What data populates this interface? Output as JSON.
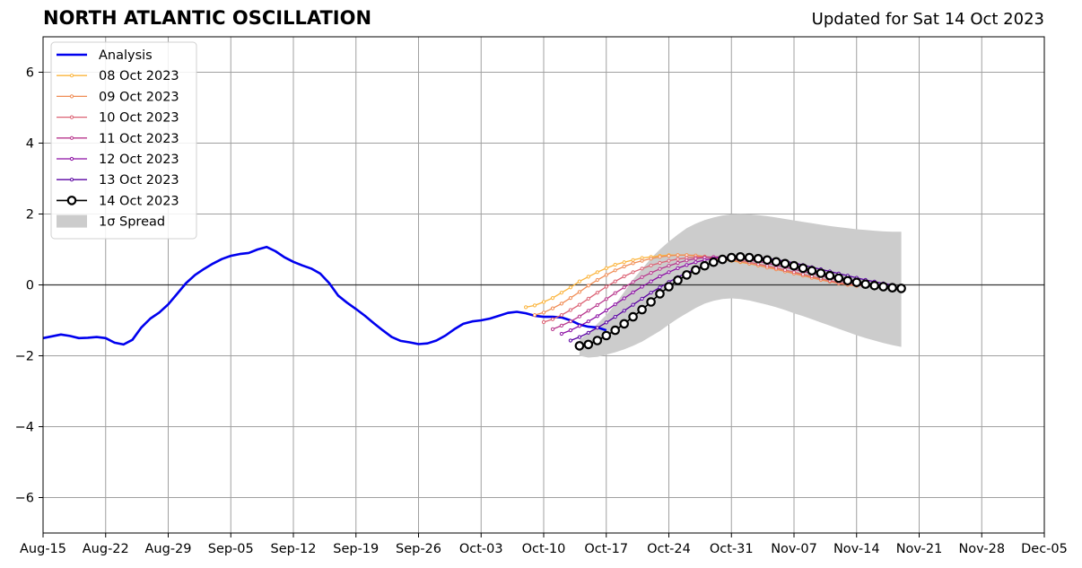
{
  "chart_data": {
    "type": "line",
    "title": "NORTH ATLANTIC OSCILLATION",
    "subtitle": "Updated for Sat 14 Oct 2023",
    "xlabel": "",
    "ylabel": "",
    "ylim": [
      -7,
      7
    ],
    "xlim": [
      "2023-08-15",
      "2023-12-05"
    ],
    "grid": true,
    "legend_position": "top-left",
    "x_tick_labels": [
      "Aug-15",
      "Aug-22",
      "Aug-29",
      "Sep-05",
      "Sep-12",
      "Sep-19",
      "Sep-26",
      "Oct-03",
      "Oct-10",
      "Oct-17",
      "Oct-24",
      "Oct-31",
      "Nov-07",
      "Nov-14",
      "Nov-21",
      "Nov-28",
      "Dec-05"
    ],
    "y_ticks": [
      6,
      4,
      2,
      0,
      -2,
      -4,
      -6
    ],
    "y_tick_labels": [
      "6",
      "4",
      "2",
      "0",
      "−2",
      "−4",
      "−6"
    ],
    "legend": [
      {
        "label": "Analysis",
        "color": "#0000ee",
        "kind": "line"
      },
      {
        "label": "08 Oct 2023",
        "color": "#fbb43c",
        "kind": "small"
      },
      {
        "label": "09 Oct 2023",
        "color": "#f08c54",
        "kind": "small"
      },
      {
        "label": "10 Oct 2023",
        "color": "#dc6274",
        "kind": "small"
      },
      {
        "label": "11 Oct 2023",
        "color": "#b8378d",
        "kind": "small"
      },
      {
        "label": "12 Oct 2023",
        "color": "#8c0fa4",
        "kind": "small"
      },
      {
        "label": "13 Oct 2023",
        "color": "#5a02a2",
        "kind": "small"
      },
      {
        "label": "14 Oct 2023",
        "color": "#000000",
        "kind": "big"
      },
      {
        "label": "1σ Spread",
        "color": "#cccccc",
        "kind": "patch"
      }
    ],
    "analysis": {
      "start": "2023-08-15",
      "values": [
        -1.5,
        -1.45,
        -1.4,
        -1.44,
        -1.5,
        -1.49,
        -1.47,
        -1.5,
        -1.63,
        -1.68,
        -1.55,
        -1.2,
        -0.95,
        -0.78,
        -0.55,
        -0.25,
        0.05,
        0.28,
        0.45,
        0.6,
        0.73,
        0.82,
        0.87,
        0.9,
        1.0,
        1.07,
        0.95,
        0.78,
        0.65,
        0.55,
        0.46,
        0.32,
        0.05,
        -0.3,
        -0.5,
        -0.68,
        -0.87,
        -1.08,
        -1.28,
        -1.47,
        -1.58,
        -1.62,
        -1.67,
        -1.65,
        -1.57,
        -1.43,
        -1.25,
        -1.1,
        -1.03,
        -1.0,
        -0.95,
        -0.87,
        -0.79,
        -0.76,
        -0.8,
        -0.87,
        -0.9,
        -0.9,
        -0.92,
        -1.0,
        -1.12,
        -1.18,
        -1.2,
        -1.28
      ]
    },
    "forecasts": [
      {
        "name": "08 Oct 2023",
        "start": "2023-10-08",
        "color": "#fbb43c",
        "values": [
          -0.63,
          -0.58,
          -0.48,
          -0.37,
          -0.22,
          -0.07,
          0.1,
          0.23,
          0.36,
          0.47,
          0.57,
          0.64,
          0.7,
          0.76,
          0.79,
          0.82,
          0.84,
          0.84,
          0.84,
          0.82,
          0.79,
          0.75,
          0.72,
          0.68,
          0.64,
          0.6,
          0.55,
          0.5,
          0.45,
          0.39,
          0.33,
          0.28,
          0.22,
          0.17,
          0.12,
          0.06,
          0.01
        ]
      },
      {
        "name": "09 Oct 2023",
        "start": "2023-10-09",
        "color": "#f08c54",
        "values": [
          -0.85,
          -0.78,
          -0.66,
          -0.53,
          -0.37,
          -0.2,
          -0.02,
          0.14,
          0.28,
          0.41,
          0.52,
          0.61,
          0.68,
          0.74,
          0.79,
          0.82,
          0.84,
          0.84,
          0.83,
          0.8,
          0.77,
          0.73,
          0.69,
          0.65,
          0.6,
          0.55,
          0.49,
          0.44,
          0.38,
          0.32,
          0.26,
          0.2,
          0.14,
          0.09,
          0.04,
          0.0,
          -0.03
        ]
      },
      {
        "name": "10 Oct 2023",
        "start": "2023-10-10",
        "color": "#dc6274",
        "values": [
          -1.05,
          -0.97,
          -0.85,
          -0.71,
          -0.56,
          -0.39,
          -0.22,
          -0.05,
          0.1,
          0.24,
          0.36,
          0.46,
          0.55,
          0.62,
          0.68,
          0.73,
          0.76,
          0.78,
          0.79,
          0.78,
          0.76,
          0.73,
          0.69,
          0.64,
          0.59,
          0.54,
          0.48,
          0.42,
          0.36,
          0.3,
          0.24,
          0.18,
          0.12,
          0.07,
          0.03,
          -0.01,
          -0.04
        ]
      },
      {
        "name": "11 Oct 2023",
        "start": "2023-10-11",
        "color": "#b8378d",
        "values": [
          -1.25,
          -1.15,
          -1.03,
          -0.89,
          -0.73,
          -0.57,
          -0.4,
          -0.23,
          -0.07,
          0.08,
          0.22,
          0.34,
          0.45,
          0.54,
          0.62,
          0.69,
          0.74,
          0.77,
          0.79,
          0.79,
          0.77,
          0.74,
          0.7,
          0.66,
          0.61,
          0.55,
          0.5,
          0.44,
          0.38,
          0.32,
          0.26,
          0.2,
          0.14,
          0.09,
          0.04,
          0.0,
          -0.04
        ]
      },
      {
        "name": "12 Oct 2023",
        "start": "2023-10-12",
        "color": "#8c0fa4",
        "values": [
          -1.38,
          -1.28,
          -1.16,
          -1.03,
          -0.88,
          -0.72,
          -0.55,
          -0.38,
          -0.21,
          -0.05,
          0.1,
          0.24,
          0.36,
          0.47,
          0.56,
          0.64,
          0.7,
          0.75,
          0.78,
          0.79,
          0.78,
          0.76,
          0.72,
          0.68,
          0.63,
          0.57,
          0.51,
          0.45,
          0.39,
          0.33,
          0.27,
          0.21,
          0.15,
          0.1,
          0.05,
          0.0,
          -0.04
        ]
      },
      {
        "name": "13 Oct 2023",
        "start": "2023-10-13",
        "color": "#5a02a2",
        "values": [
          -1.57,
          -1.47,
          -1.35,
          -1.21,
          -1.06,
          -0.9,
          -0.73,
          -0.56,
          -0.39,
          -0.22,
          -0.07,
          0.08,
          0.22,
          0.34,
          0.45,
          0.55,
          0.63,
          0.69,
          0.74,
          0.77,
          0.78,
          0.77,
          0.75,
          0.71,
          0.67,
          0.62,
          0.56,
          0.5,
          0.44,
          0.38,
          0.32,
          0.26,
          0.2,
          0.14,
          0.09,
          0.04,
          0.0
        ]
      },
      {
        "name": "14 Oct 2023",
        "start": "2023-10-14",
        "color": "#000000",
        "values": [
          -1.72,
          -1.68,
          -1.57,
          -1.43,
          -1.28,
          -1.1,
          -0.9,
          -0.7,
          -0.48,
          -0.25,
          -0.05,
          0.13,
          0.28,
          0.42,
          0.54,
          0.64,
          0.72,
          0.77,
          0.79,
          0.77,
          0.74,
          0.7,
          0.65,
          0.6,
          0.54,
          0.47,
          0.4,
          0.33,
          0.26,
          0.19,
          0.12,
          0.07,
          0.02,
          -0.02,
          -0.05,
          -0.08,
          -0.1
        ]
      }
    ],
    "spread": {
      "start": "2023-10-14",
      "upper": [
        -1.55,
        -1.35,
        -1.1,
        -0.85,
        -0.55,
        -0.2,
        0.15,
        0.45,
        0.75,
        1.0,
        1.22,
        1.42,
        1.6,
        1.73,
        1.83,
        1.9,
        1.96,
        1.99,
        2.0,
        1.99,
        1.97,
        1.94,
        1.9,
        1.86,
        1.82,
        1.78,
        1.74,
        1.7,
        1.66,
        1.63,
        1.6,
        1.57,
        1.55,
        1.53,
        1.51,
        1.5,
        1.5
      ],
      "lower": [
        -2.0,
        -2.05,
        -2.03,
        -1.97,
        -1.9,
        -1.82,
        -1.72,
        -1.6,
        -1.45,
        -1.3,
        -1.12,
        -0.95,
        -0.8,
        -0.65,
        -0.53,
        -0.45,
        -0.4,
        -0.38,
        -0.4,
        -0.44,
        -0.5,
        -0.56,
        -0.63,
        -0.71,
        -0.8,
        -0.88,
        -0.97,
        -1.06,
        -1.15,
        -1.24,
        -1.33,
        -1.42,
        -1.5,
        -1.57,
        -1.64,
        -1.7,
        -1.75
      ]
    }
  }
}
